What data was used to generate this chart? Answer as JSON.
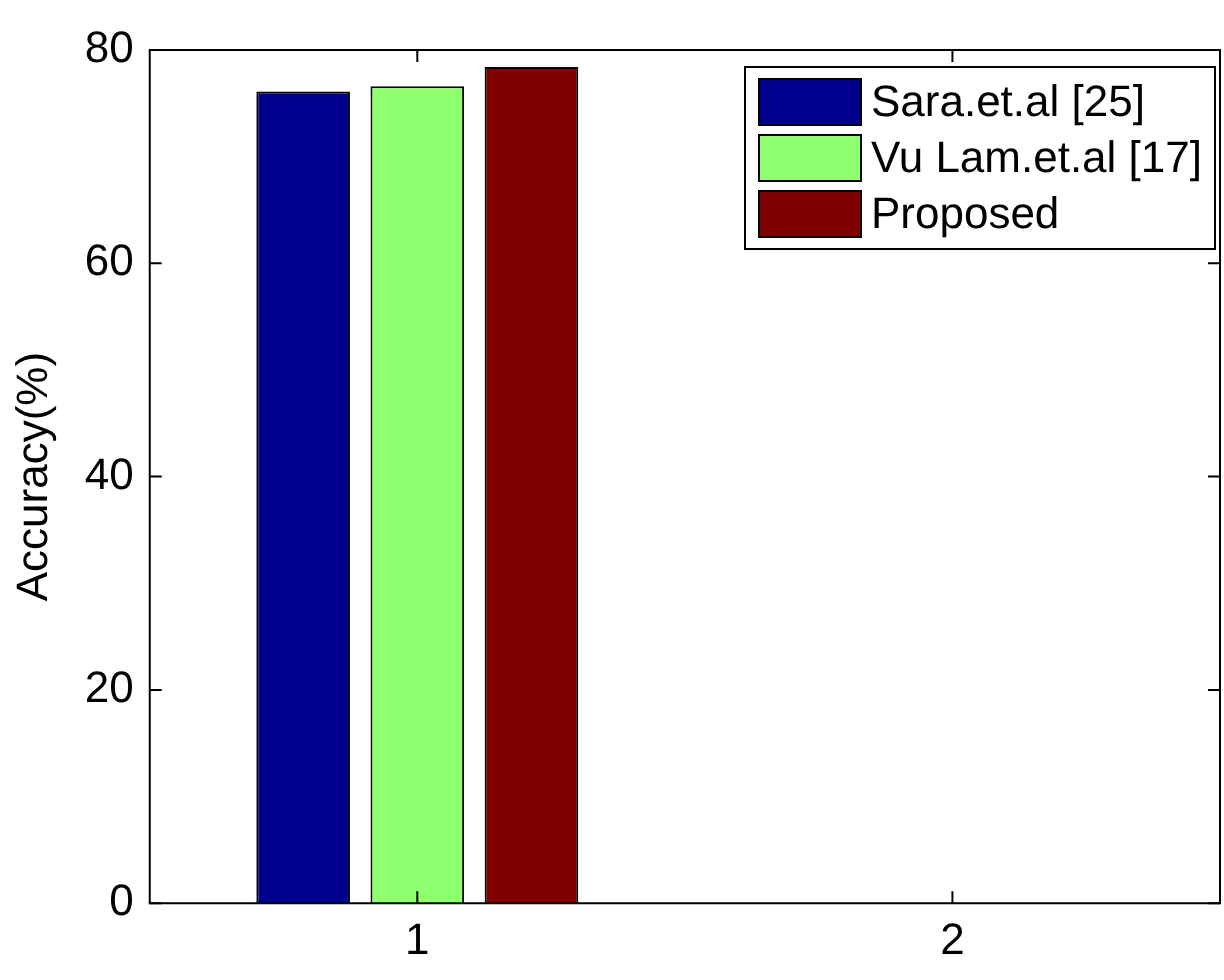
{
  "chart_data": {
    "type": "bar",
    "ylabel": "Accuracy(%)",
    "categories": [
      "1",
      "2"
    ],
    "series": [
      {
        "name": "Sara.et.al [25]",
        "color": "#00008f",
        "values": [
          76.1,
          null
        ]
      },
      {
        "name": "Vu Lam.et.al [17]",
        "color": "#8fff6f",
        "values": [
          76.6,
          null
        ]
      },
      {
        "name": "Proposed",
        "color": "#800000",
        "values": [
          78.4,
          null
        ]
      }
    ],
    "ylim": [
      0,
      80
    ],
    "yticks": [
      0,
      20,
      40,
      60,
      80
    ],
    "grid": false,
    "legend": "top right"
  }
}
